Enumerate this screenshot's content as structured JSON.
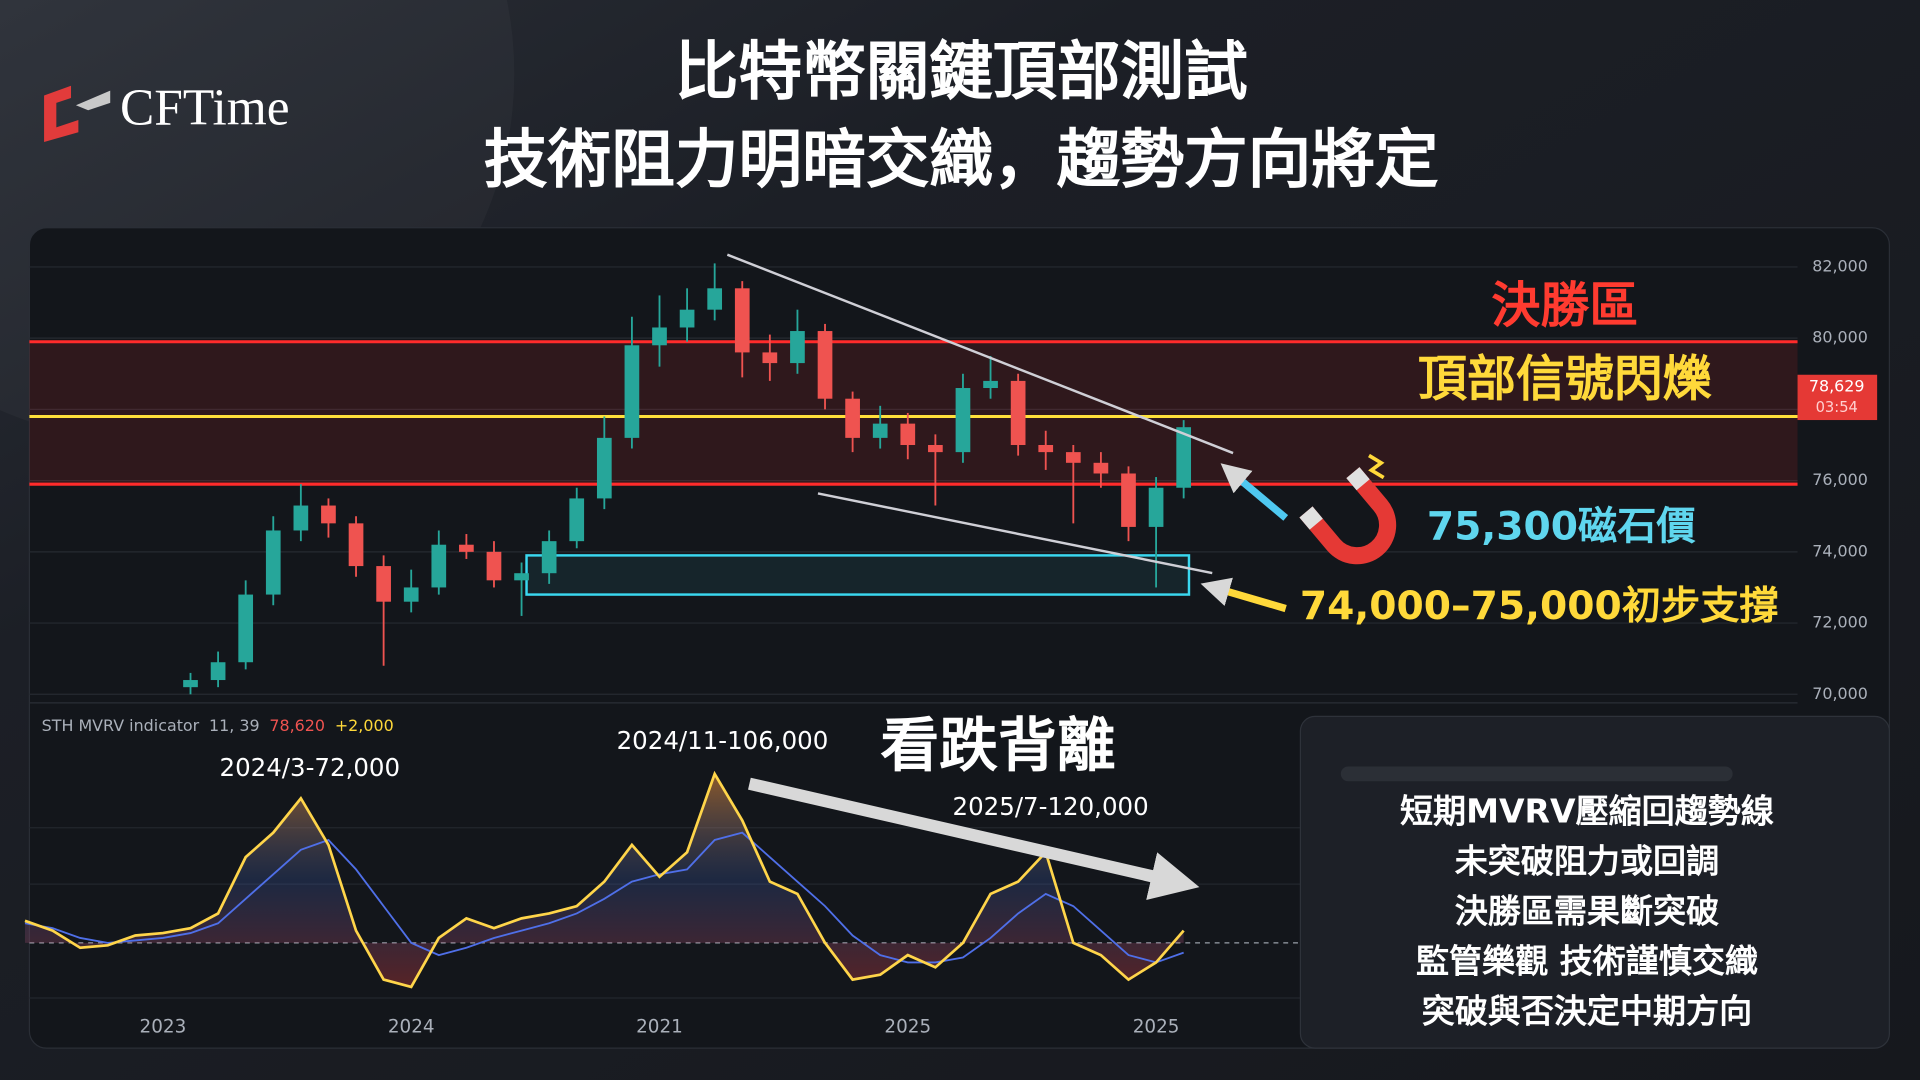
{
  "logo": "CFTime",
  "title": [
    "比特幣關鍵頂部測試",
    "技術阻力明暗交織，趨勢方向將定"
  ],
  "chart_data": [
    {
      "type": "candlestick",
      "categories": [
        null,
        null,
        null,
        null,
        null,
        null,
        null,
        null,
        null,
        null,
        null,
        null,
        null,
        null,
        null,
        null,
        null,
        null,
        null,
        null,
        null,
        null,
        null,
        null,
        null,
        null,
        null,
        null,
        null,
        null,
        null,
        null,
        null,
        null,
        null,
        null,
        null
      ],
      "open": [
        70200,
        70400,
        70900,
        72800,
        74600,
        75300,
        74800,
        73600,
        72600,
        73000,
        74200,
        74000,
        73200,
        73400,
        74300,
        75500,
        77200,
        79800,
        80300,
        80800,
        81400,
        79600,
        79300,
        80200,
        78300,
        77200,
        77600,
        77000,
        76800,
        78600,
        78800,
        77000,
        76800,
        76500,
        76200,
        74700,
        75800
      ],
      "high": [
        70600,
        71200,
        73200,
        75000,
        75900,
        75500,
        75000,
        73900,
        73500,
        74600,
        74500,
        74300,
        73700,
        74600,
        75800,
        77800,
        80600,
        81200,
        81400,
        82100,
        81600,
        80100,
        80800,
        80400,
        78500,
        78100,
        77900,
        77300,
        79000,
        79500,
        79000,
        77400,
        77000,
        76800,
        76400,
        76100,
        77700
      ],
      "low": [
        70000,
        70200,
        70700,
        72500,
        74300,
        74400,
        73300,
        70800,
        72300,
        72800,
        73800,
        73000,
        72200,
        73100,
        74100,
        75200,
        76900,
        79200,
        79900,
        80500,
        78900,
        78800,
        79000,
        78000,
        76800,
        76900,
        76600,
        75300,
        76500,
        78300,
        76700,
        76300,
        74800,
        75800,
        74300,
        73000,
        75500
      ],
      "close": [
        70400,
        70900,
        72800,
        74600,
        75300,
        74800,
        73600,
        72600,
        73000,
        74200,
        74000,
        73200,
        73400,
        74300,
        75500,
        77200,
        79800,
        80300,
        80800,
        81400,
        79600,
        79300,
        80200,
        78300,
        77200,
        77600,
        77000,
        76800,
        78600,
        78800,
        77000,
        76800,
        76500,
        76200,
        74700,
        75800,
        77500
      ],
      "up_color": "#26a69a",
      "down_color": "#ef5350",
      "ylim": [
        70000,
        82000
      ],
      "yticks": [
        {
          "value": 70000,
          "label": "70,000"
        },
        {
          "value": 72000,
          "label": "72,000"
        },
        {
          "value": 74000,
          "label": "74,000"
        },
        {
          "value": 76000,
          "label": "76,000"
        },
        {
          "value": 78000,
          "label": "78,000"
        },
        {
          "value": 80000,
          "label": "80,000"
        },
        {
          "value": 82000,
          "label": "82,000"
        }
      ],
      "grid": true,
      "levels": [
        {
          "value": 79900,
          "color": "#ff2b2b"
        },
        {
          "value": 77800,
          "color": "#ffe03a"
        },
        {
          "value": 75900,
          "color": "#ff2b2b"
        }
      ],
      "support_box": {
        "range": [
          72800,
          73900
        ],
        "color": "#3ad8f0"
      },
      "price_tag": {
        "value": 78629,
        "label": "78,629",
        "color": "#e53935"
      },
      "countdown": "03:54",
      "annotations": [
        {
          "text": "決勝區",
          "color": "#ff3b30"
        },
        {
          "text": "頂部信號閃爍",
          "color": "#ffd93a"
        },
        {
          "text": "75,300磁石價",
          "color": "#5fd6ee"
        },
        {
          "text": "74,000–75,000初步支撐",
          "color": "#ffd93a"
        }
      ]
    },
    {
      "type": "line",
      "legend": {
        "name": "STH MVRV indicator",
        "params": "11, 39",
        "readout": [
          {
            "text": "78,620",
            "color": "#ef5350"
          },
          {
            "text": "+2,000",
            "color": "#ffd93a"
          }
        ]
      },
      "categories": [
        null,
        null,
        null,
        null,
        null,
        "2023",
        null,
        null,
        null,
        null,
        null,
        null,
        null,
        null,
        "2024",
        null,
        null,
        null,
        null,
        null,
        null,
        null,
        null,
        "2021",
        null,
        null,
        null,
        null,
        null,
        null,
        null,
        null,
        "2025",
        null,
        null,
        null,
        null,
        null,
        null,
        null,
        null,
        "2025",
        null
      ],
      "series": [
        {
          "color": "#ffd54a",
          "values": [
            39,
            35,
            28,
            29,
            33,
            34,
            36,
            42,
            65,
            75,
            89,
            70,
            35,
            15,
            12,
            32,
            40,
            36,
            40,
            42,
            45,
            55,
            70,
            57,
            67,
            99,
            80,
            55,
            50,
            30,
            15,
            17,
            25,
            20,
            30,
            50,
            55,
            67,
            30,
            25,
            15,
            22,
            35
          ]
        },
        {
          "color": "#4f6fe8",
          "values": [
            38,
            36,
            32,
            30,
            31,
            32,
            34,
            38,
            48,
            58,
            68,
            72,
            60,
            45,
            30,
            25,
            28,
            32,
            35,
            38,
            42,
            48,
            55,
            58,
            60,
            72,
            75,
            65,
            55,
            45,
            33,
            25,
            22,
            22,
            24,
            32,
            42,
            50,
            45,
            35,
            25,
            22,
            26
          ]
        }
      ],
      "ylim": [
        0,
        100
      ],
      "baseline": 30,
      "annotations": [
        {
          "text": "2024/3-72,000"
        },
        {
          "text": "2024/11-106,000"
        },
        {
          "text": "2025/7-120,000"
        },
        {
          "text": "看跌背離"
        }
      ]
    }
  ],
  "summary": [
    "短期MVRV壓縮回趨勢線",
    "未突破阻力或回調",
    "決勝區需果斷突破",
    "監管樂觀 技術謹慎交織",
    "突破與否決定中期方向"
  ]
}
